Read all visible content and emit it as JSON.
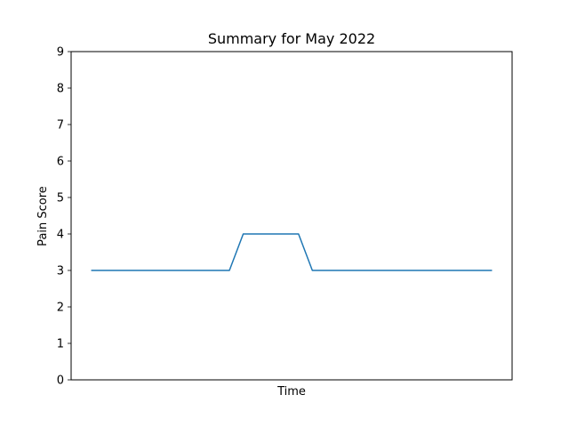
{
  "chart_data": {
    "type": "line",
    "title": "Summary for May 2022",
    "xlabel": "Time",
    "ylabel": "Pain Score",
    "ylim": [
      0,
      9
    ],
    "yticks": [
      "0",
      "1",
      "2",
      "3",
      "4",
      "5",
      "6",
      "7",
      "8",
      "9"
    ],
    "xticks": [],
    "grid": false,
    "colors": {
      "line": "#1f77b4",
      "axes": "#000000"
    },
    "series": [
      {
        "x": [
          0,
          1,
          2,
          3,
          4,
          5,
          6,
          7,
          8,
          9,
          10,
          11,
          12,
          13,
          14,
          15,
          16,
          17,
          18,
          19,
          20,
          21,
          22,
          23,
          24,
          25,
          26,
          27,
          28,
          29
        ],
        "values": [
          3,
          3,
          3,
          3,
          3,
          3,
          3,
          3,
          3,
          3,
          3,
          4,
          4,
          4,
          4,
          4,
          3,
          3,
          3,
          3,
          3,
          3,
          3,
          3,
          3,
          3,
          3,
          3,
          3,
          3
        ]
      }
    ]
  }
}
